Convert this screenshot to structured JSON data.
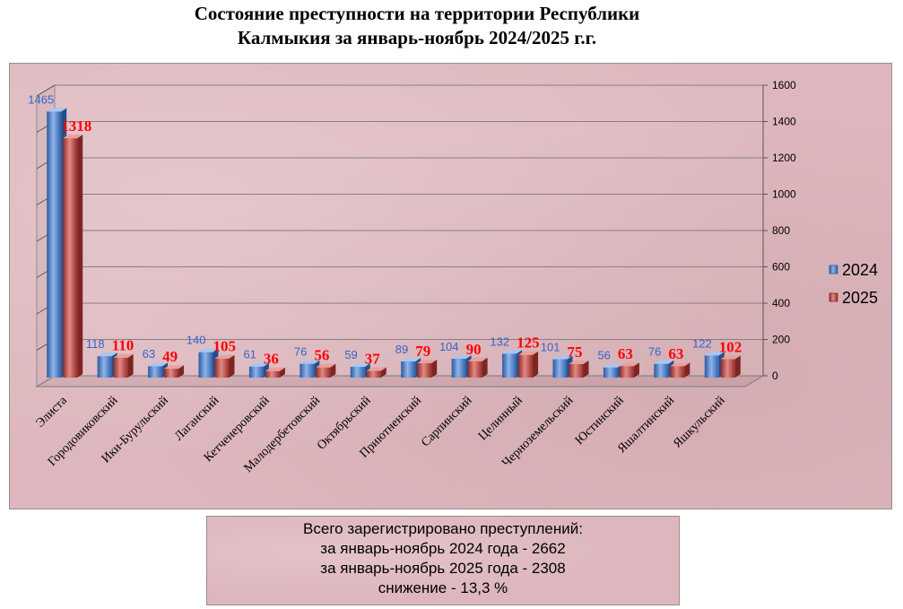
{
  "title": {
    "line1": "Состояние преступности на территории  Республики",
    "line2": "Калмыкия за январь-ноябрь 2024/2025 г.г."
  },
  "summary": {
    "line1": "Всего зарегистрировано  преступлений:",
    "line2": "за январь-ноябрь 2024 года - 2662",
    "line3": "за январь-ноябрь 2025 года - 2308",
    "line4": "снижение  - 13,3 %"
  },
  "colors": {
    "series_2024": "#4a7cc4",
    "series_2025": "#c0504d",
    "label_2024": "#3366cc",
    "label_2025": "#ff0000",
    "background": "#ddb7bd"
  },
  "chart_data": {
    "type": "bar",
    "categories": [
      "Элиста",
      "Городовиковский",
      "Ики-Бурульский",
      "Лаганский",
      "Кетченеровский",
      "Малодербетовский",
      "Октябрьский",
      "Приютненский",
      "Сарпинский",
      "Целинный",
      "Черноземельский",
      "Юстинский",
      "Яшалтинский",
      "Яшкульский"
    ],
    "series": [
      {
        "name": "2024",
        "values": [
          1465,
          118,
          63,
          140,
          61,
          76,
          59,
          89,
          104,
          132,
          101,
          56,
          76,
          122
        ]
      },
      {
        "name": "2025",
        "values": [
          1318,
          110,
          49,
          105,
          36,
          56,
          37,
          79,
          90,
          125,
          75,
          63,
          63,
          102
        ]
      }
    ],
    "y_ticks": [
      "0",
      "200",
      "400",
      "600",
      "800",
      "1000",
      "1200",
      "1400",
      "1600"
    ],
    "ylim": [
      0,
      1600
    ],
    "grid": true,
    "legend_position": "right",
    "data_labels": true
  }
}
